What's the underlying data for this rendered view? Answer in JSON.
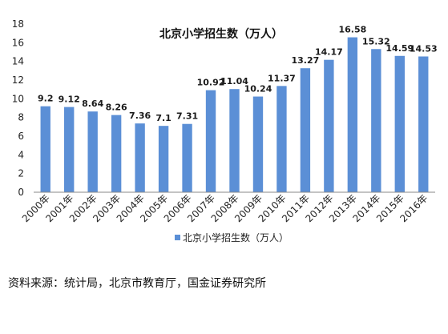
{
  "chart_data": {
    "type": "bar",
    "title": "北京小学招生数（万人）",
    "categories": [
      "2000年",
      "2001年",
      "2002年",
      "2003年",
      "2004年",
      "2005年",
      "2006年",
      "2007年",
      "2008年",
      "2009年",
      "2010年",
      "2011年",
      "2012年",
      "2013年",
      "2014年",
      "2015年",
      "2016年"
    ],
    "series": [
      {
        "name": "北京小学招生数（万人）",
        "values": [
          9.2,
          9.12,
          8.64,
          8.26,
          7.36,
          7.1,
          7.31,
          10.92,
          11.04,
          10.24,
          11.37,
          13.27,
          14.17,
          16.58,
          15.32,
          14.59,
          14.53
        ],
        "labels": [
          "9.2",
          "9.12",
          "8.64",
          "8.26",
          "7.36",
          "7.1",
          "7.31",
          "10.92",
          "11.04",
          "10.24",
          "11.37",
          "13.27",
          "14.17",
          "16.58",
          "15.32",
          "14.59",
          "14.53"
        ]
      }
    ],
    "ylim": [
      0,
      18
    ],
    "yticks": [
      0,
      2,
      4,
      6,
      8,
      10,
      12,
      14,
      16,
      18
    ],
    "grid": false,
    "legend": "bottom-center",
    "bar_color": "#5b8fd6"
  },
  "source": "资料来源：统计局，北京市教育厅，国金证券研究所"
}
